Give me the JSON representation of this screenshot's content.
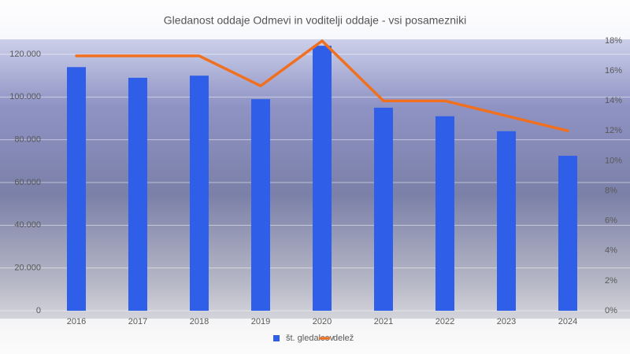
{
  "chart_data": {
    "type": "combo",
    "title": "Gledanost oddaje Odmevi in voditelji oddaje - vsi posamezniki",
    "categories": [
      "2016",
      "2017",
      "2018",
      "2019",
      "2020",
      "2021",
      "2022",
      "2023",
      "2024"
    ],
    "series": [
      {
        "name": "št. gledalcev",
        "type": "bar",
        "color": "#2f5fe8",
        "values": [
          114000,
          109000,
          110000,
          99000,
          124000,
          95000,
          91000,
          84000,
          72500
        ]
      },
      {
        "name": "delež",
        "type": "line",
        "axis": "y2",
        "color": "#f07020",
        "values": [
          17,
          17,
          17,
          15,
          18,
          14,
          14,
          13,
          12
        ]
      }
    ],
    "ylim": [
      0,
      120000
    ],
    "yticks": [
      0,
      {
        "value": 20000,
        "label": "20.000"
      },
      {
        "value": 40000,
        "label": "40.000"
      },
      {
        "value": 60000,
        "label": "60.000"
      },
      {
        "value": 80000,
        "label": "80.000"
      },
      {
        "value": 100000,
        "label": "100.000"
      },
      {
        "value": 120000,
        "label": "120.000"
      }
    ],
    "y2lim": [
      0,
      18
    ],
    "y2ticks": [
      {
        "value": 0,
        "label": "0%"
      },
      {
        "value": 2,
        "label": "2%"
      },
      {
        "value": 4,
        "label": "4%"
      },
      {
        "value": 6,
        "label": "6%"
      },
      {
        "value": 8,
        "label": "8%"
      },
      {
        "value": 10,
        "label": "10%"
      },
      {
        "value": 12,
        "label": "12%"
      },
      {
        "value": 14,
        "label": "14%"
      },
      {
        "value": 16,
        "label": "16%"
      },
      {
        "value": 18,
        "label": "18%"
      }
    ],
    "grid": true,
    "legend": "bottom"
  }
}
